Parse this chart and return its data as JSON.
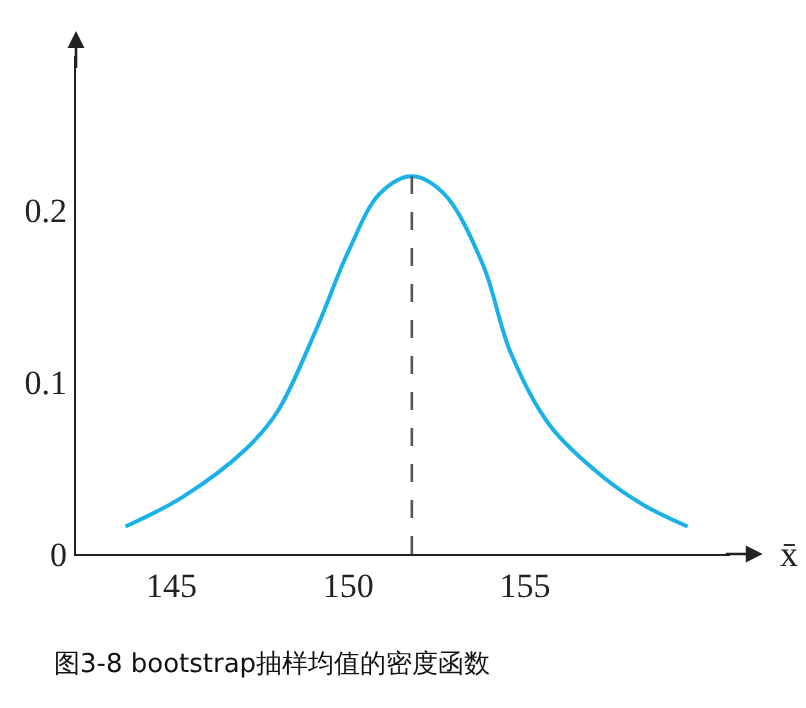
{
  "chart_data": {
    "type": "line",
    "xlabel": "x̄",
    "x": [
      143.7,
      145.3,
      147.1,
      148.0,
      149.1,
      150.0,
      150.9,
      151.8,
      152.7,
      153.8,
      154.6,
      155.7,
      157.2,
      158.4,
      159.6
    ],
    "series": [
      {
        "color": "#1ab0e8",
        "values": [
          0.016,
          0.033,
          0.061,
          0.083,
          0.131,
          0.176,
          0.21,
          0.22,
          0.21,
          0.169,
          0.117,
          0.075,
          0.045,
          0.028,
          0.016
        ]
      }
    ],
    "xlim": [
      142.3,
      160.8
    ],
    "ylim": [
      0,
      0.29
    ],
    "xticks": [
      145,
      150,
      155
    ],
    "yticks": [
      0,
      0.1,
      0.2
    ],
    "ref_lines": [
      {
        "axis": "x",
        "value": 151.8,
        "color": "#555555",
        "line_style": "dashed"
      }
    ],
    "legend": false,
    "marker": "none",
    "line_style": "solid",
    "annotations": [
      "图3-8 bootstrap抽样均值的密度函数"
    ]
  }
}
